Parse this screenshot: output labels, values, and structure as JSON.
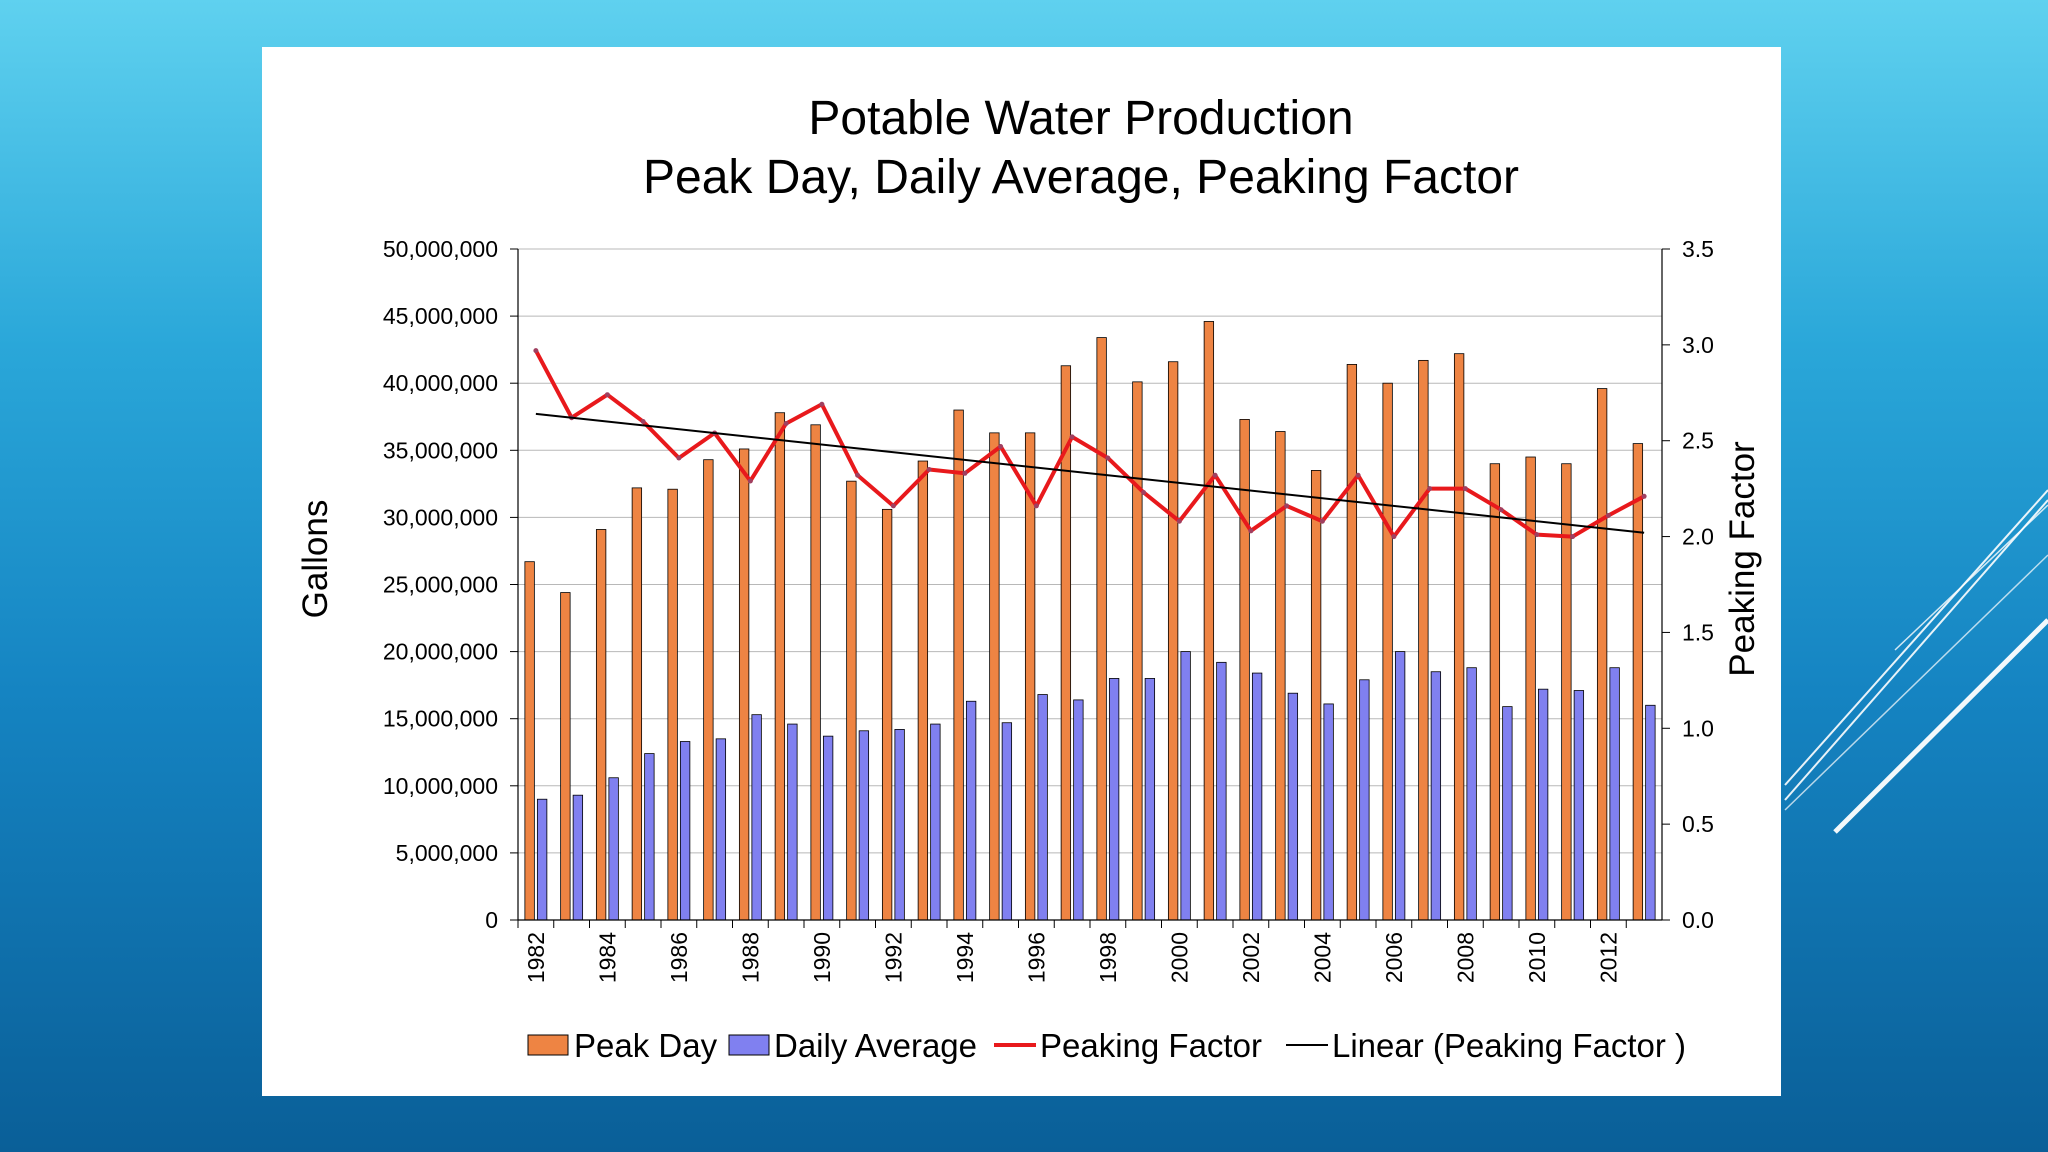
{
  "chart_data": {
    "type": "bar",
    "title": [
      "Potable Water Production",
      "Peak Day, Daily Average, Peaking Factor"
    ],
    "ylabel": "Gallons",
    "y2label": "Peaking Factor",
    "xlabel": "",
    "ylim": [
      0,
      50000000
    ],
    "y2lim": [
      0,
      3.5
    ],
    "yticks": [
      "0",
      "5,000,000",
      "10,000,000",
      "15,000,000",
      "20,000,000",
      "25,000,000",
      "30,000,000",
      "35,000,000",
      "40,000,000",
      "45,000,000",
      "50,000,000"
    ],
    "yticks_values": [
      0,
      5000000,
      10000000,
      15000000,
      20000000,
      25000000,
      30000000,
      35000000,
      40000000,
      45000000,
      50000000
    ],
    "y2ticks": [
      "0.0",
      "0.5",
      "1.0",
      "1.5",
      "2.0",
      "2.5",
      "3.0",
      "3.5"
    ],
    "y2ticks_values": [
      0,
      0.5,
      1.0,
      1.5,
      2.0,
      2.5,
      3.0,
      3.5
    ],
    "categories": [
      "1982",
      "1983",
      "1984",
      "1985",
      "1986",
      "1987",
      "1988",
      "1989",
      "1990",
      "1991",
      "1992",
      "1993",
      "1994",
      "1995",
      "1996",
      "1997",
      "1998",
      "1999",
      "2000",
      "2001",
      "2002",
      "2003",
      "2004",
      "2005",
      "2006",
      "2007",
      "2008",
      "2009",
      "2010",
      "2011",
      "2012",
      "2013"
    ],
    "xtick_labels": [
      "1982",
      "",
      "1984",
      "",
      "1986",
      "",
      "1988",
      "",
      "1990",
      "",
      "1992",
      "",
      "1994",
      "",
      "1996",
      "",
      "1998",
      "",
      "2000",
      "",
      "2002",
      "",
      "2004",
      "",
      "2006",
      "",
      "2008",
      "",
      "2010",
      "",
      "2012",
      ""
    ],
    "series": [
      {
        "name": "Peak Day",
        "type": "bar",
        "axis": "left",
        "color": "#ee8443",
        "values": [
          26700000,
          24400000,
          29100000,
          32200000,
          32100000,
          34300000,
          35100000,
          37800000,
          36900000,
          32700000,
          30600000,
          34200000,
          38000000,
          36300000,
          36300000,
          41300000,
          43400000,
          40100000,
          41600000,
          44600000,
          37300000,
          36400000,
          33500000,
          41400000,
          40000000,
          41700000,
          42200000,
          34000000,
          34500000,
          34000000,
          39600000,
          35500000
        ]
      },
      {
        "name": "Daily Average",
        "type": "bar",
        "axis": "left",
        "color": "#8080f0",
        "values": [
          9000000,
          9300000,
          10600000,
          12400000,
          13300000,
          13500000,
          15300000,
          14600000,
          13700000,
          14100000,
          14200000,
          14600000,
          16300000,
          14700000,
          16800000,
          16400000,
          18000000,
          18000000,
          20000000,
          19200000,
          18400000,
          16900000,
          16100000,
          17900000,
          20000000,
          18500000,
          18800000,
          15900000,
          17200000,
          17100000,
          18800000,
          16000000
        ]
      },
      {
        "name": "Peaking Factor",
        "type": "line",
        "axis": "right",
        "color": "#e8191c",
        "values": [
          2.97,
          2.62,
          2.74,
          2.6,
          2.41,
          2.54,
          2.29,
          2.59,
          2.69,
          2.32,
          2.16,
          2.35,
          2.33,
          2.47,
          2.16,
          2.52,
          2.41,
          2.23,
          2.08,
          2.32,
          2.03,
          2.16,
          2.08,
          2.32,
          2.0,
          2.25,
          2.25,
          2.14,
          2.01,
          2.0,
          2.11,
          2.21
        ]
      },
      {
        "name": "Linear (Peaking Factor )",
        "type": "trendline",
        "axis": "right",
        "color": "#000000",
        "start": 2.64,
        "end": 2.02
      }
    ],
    "legend": [
      "Peak Day",
      "Daily Average",
      "Peaking Factor",
      "Linear (Peaking Factor )"
    ],
    "legend_position": "bottom",
    "grid": true
  }
}
